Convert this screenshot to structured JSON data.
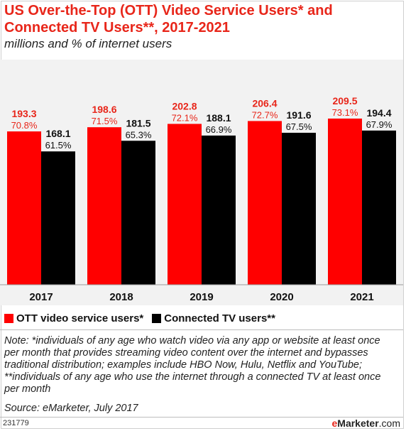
{
  "title": "US Over-the-Top (OTT) Video Service Users* and Connected TV Users**, 2017-2021",
  "subtitle": "millions and % of internet users",
  "colors": {
    "ott": "#ff0000",
    "ctv": "#000000",
    "ott_label": "#e8261a",
    "ctv_label": "#111111",
    "background": "#f2f2f2"
  },
  "legend": {
    "ott": "OTT video service users*",
    "ctv": "Connected TV users**"
  },
  "note": "Note: *individuals of any age who watch video via any app or website at least once per month that provides streaming video content over the internet and bypasses traditional distribution; examples include HBO Now, Hulu, Netflix and YouTube; **individuals of any age who use the internet through a connected TV at least once per month",
  "source": "Source: eMarketer, July 2017",
  "chart_id": "231779",
  "brand": {
    "e": "e",
    "rest": "Marketer",
    "suffix": ".com"
  },
  "chart_data": {
    "type": "bar",
    "categories": [
      "2017",
      "2018",
      "2019",
      "2020",
      "2021"
    ],
    "series": [
      {
        "name": "OTT video service users*",
        "values": [
          193.3,
          198.6,
          202.8,
          206.4,
          209.5
        ],
        "value_labels": [
          "193.3",
          "198.6",
          "202.8",
          "206.4",
          "209.5"
        ],
        "pct_labels": [
          "70.8%",
          "71.5%",
          "72.1%",
          "72.7%",
          "73.1%"
        ]
      },
      {
        "name": "Connected TV users**",
        "values": [
          168.1,
          181.5,
          188.1,
          191.6,
          194.4
        ],
        "value_labels": [
          "168.1",
          "181.5",
          "188.1",
          "191.6",
          "194.4"
        ],
        "pct_labels": [
          "61.5%",
          "65.3%",
          "66.9%",
          "67.5%",
          "67.9%"
        ]
      }
    ],
    "ylim": [
      0,
      209.5
    ],
    "grid": false,
    "legend_position": "bottom-left"
  }
}
